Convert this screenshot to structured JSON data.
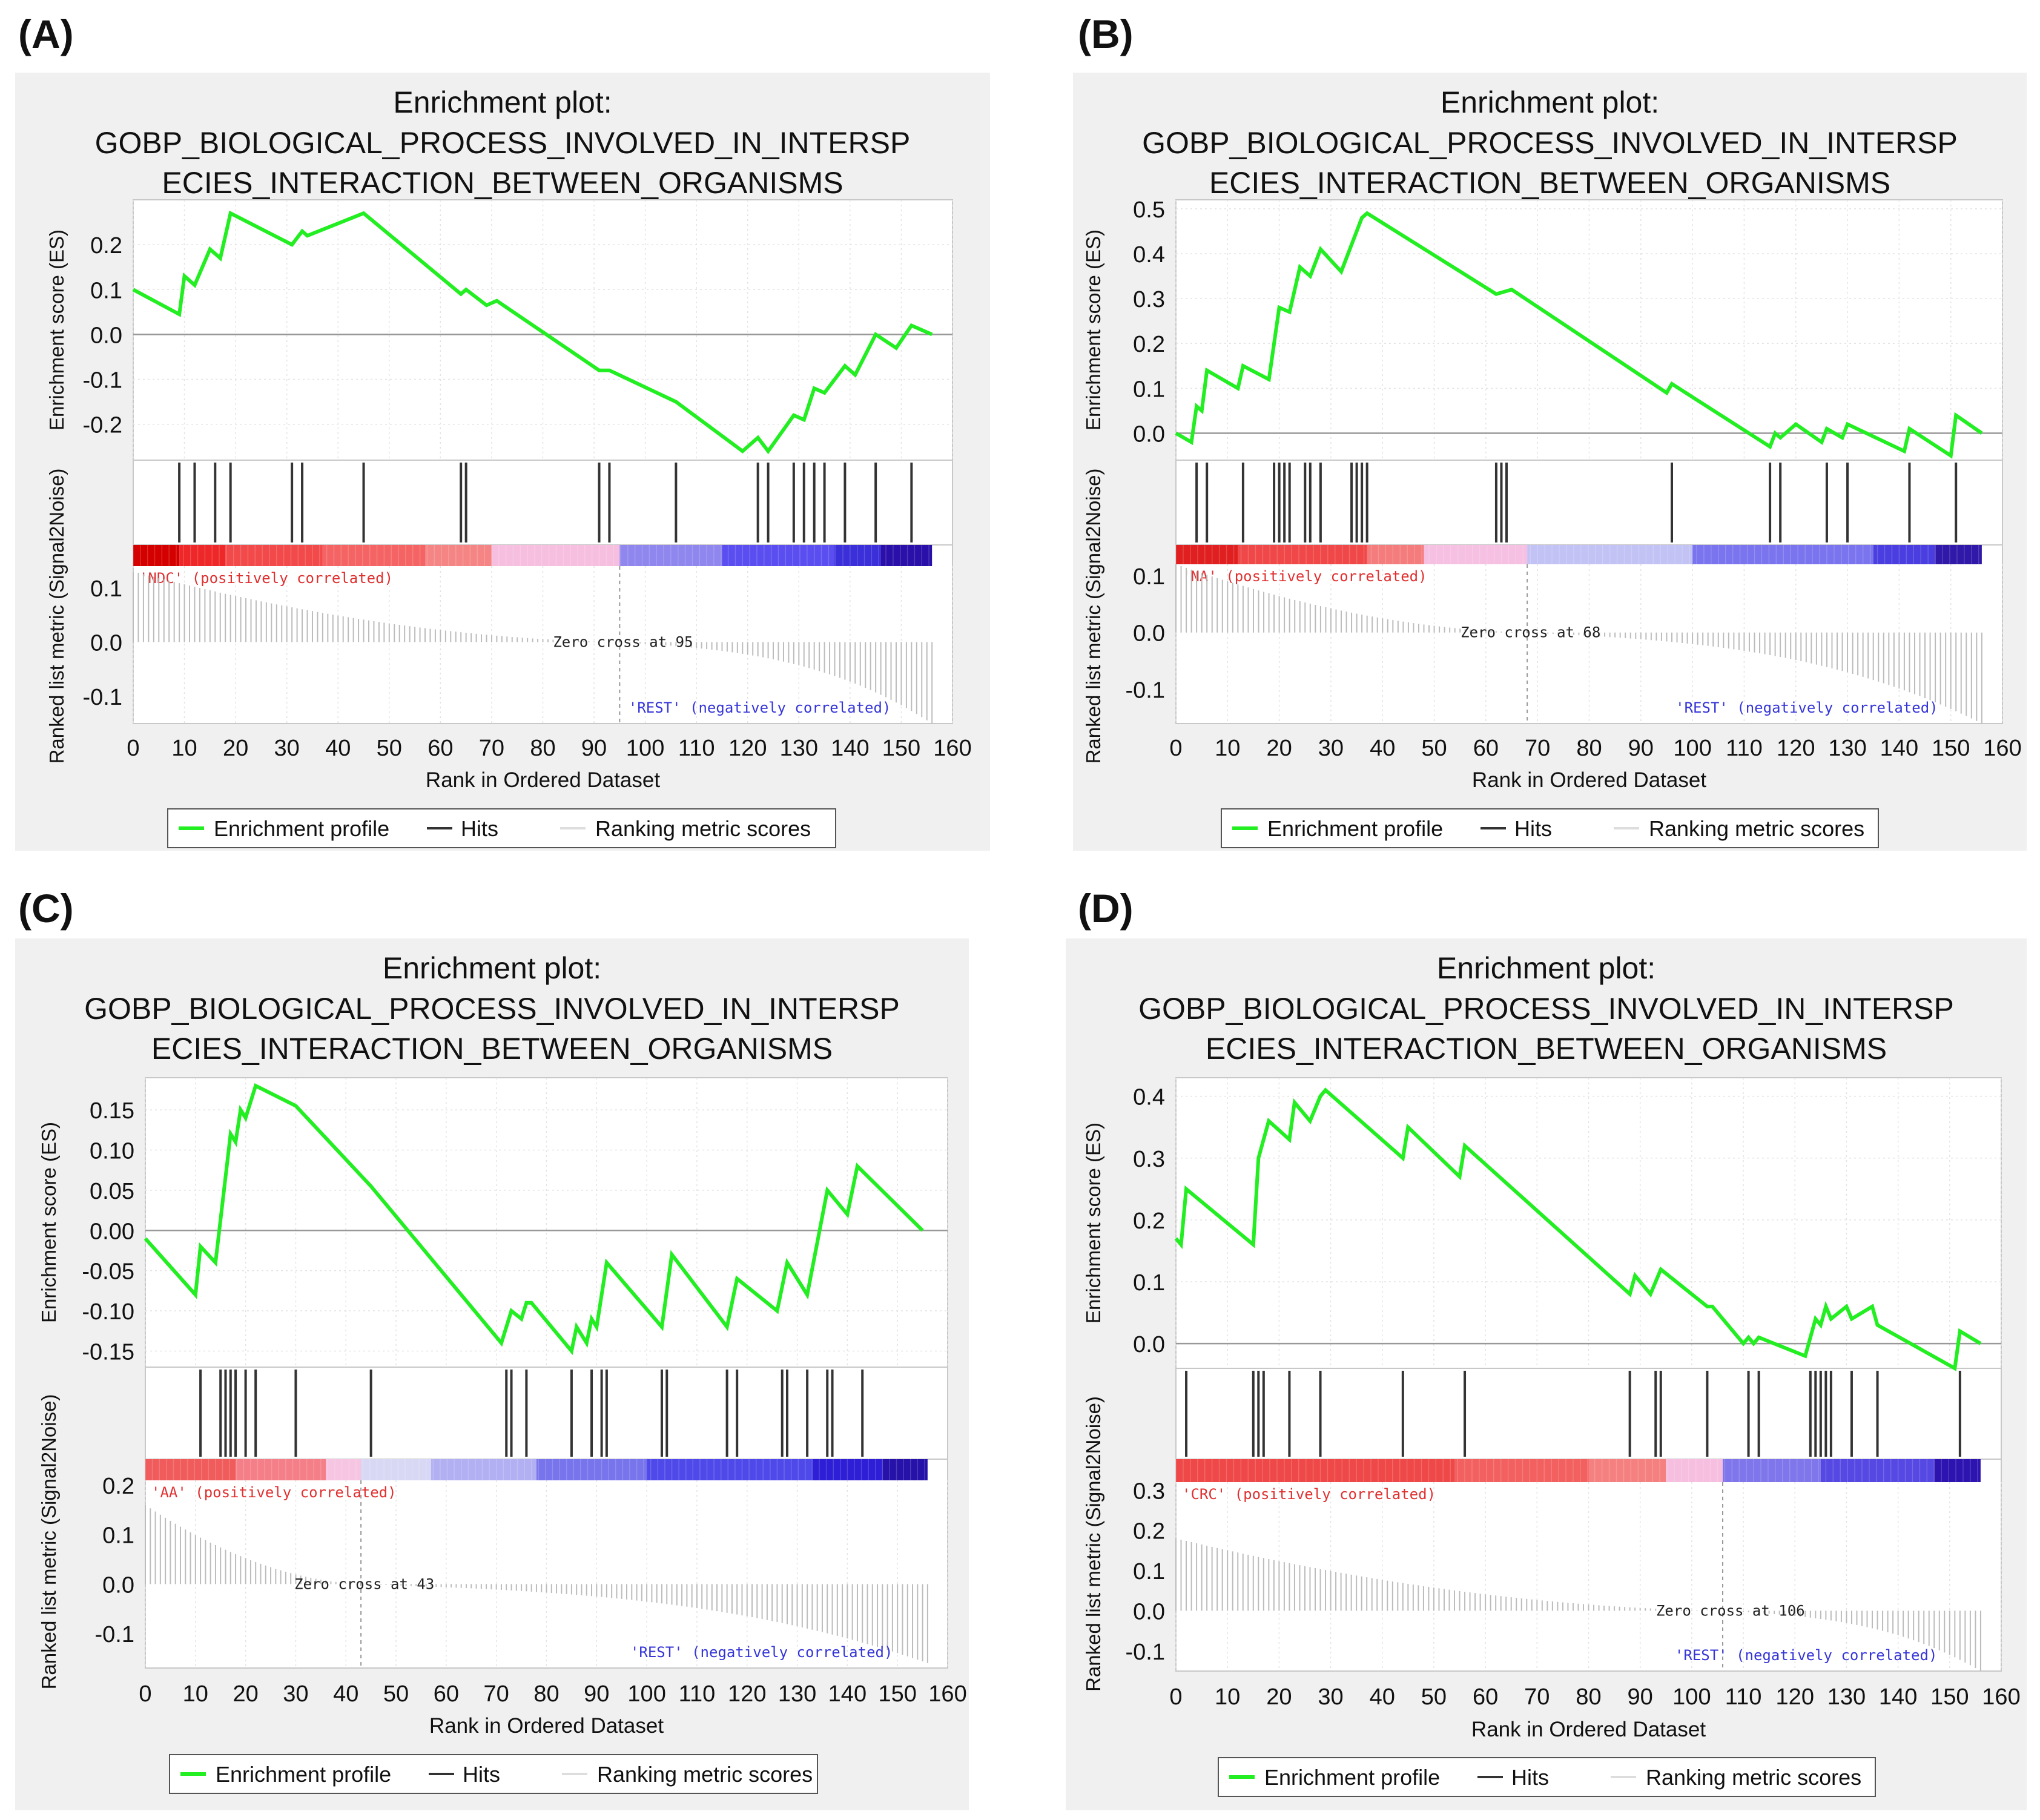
{
  "colors": {
    "profile": "#22ee22",
    "hits": "#333333",
    "ranking": "#bcbcbc",
    "pos_label": "#e03030",
    "neg_label": "#3535d8",
    "panel_bg": "#f0f0f0"
  },
  "legend": {
    "profile": "Enrichment profile",
    "hits": "Hits",
    "ranking": "Ranking metric scores"
  },
  "axis_labels": {
    "es": "Enrichment score (ES)",
    "metric": "Ranked list metric (Signal2Noise)",
    "x": "Rank in Ordered Dataset"
  },
  "chart_data": [
    {
      "panel": "(A)",
      "type": "line",
      "title": [
        "Enrichment plot:",
        "GOBP_BIOLOGICAL_PROCESS_INVOLVED_IN_INTERSP",
        "ECIES_INTERACTION_BETWEEN_ORGANISMS"
      ],
      "xlim": [
        0,
        160
      ],
      "xticks": [
        0,
        10,
        20,
        30,
        40,
        50,
        60,
        70,
        80,
        90,
        100,
        110,
        120,
        130,
        140,
        150,
        160
      ],
      "es_ylim": [
        -0.28,
        0.3
      ],
      "es_ticks": [
        -0.2,
        -0.1,
        0.0,
        0.1,
        0.2
      ],
      "es_tick_labels": [
        "-0.2",
        "-0.1",
        "0.0",
        "0.1",
        "0.2"
      ],
      "es_x": [
        0,
        9,
        10,
        12,
        15,
        17,
        19,
        31,
        33,
        34,
        45,
        64,
        65,
        69,
        71,
        91,
        93,
        106,
        119,
        122,
        124,
        129,
        131,
        133,
        135,
        139,
        141,
        145,
        149,
        152,
        156
      ],
      "es_y": [
        0.1,
        0.045,
        0.13,
        0.11,
        0.19,
        0.17,
        0.27,
        0.2,
        0.23,
        0.22,
        0.27,
        0.09,
        0.1,
        0.065,
        0.075,
        -0.08,
        -0.08,
        -0.15,
        -0.26,
        -0.23,
        -0.26,
        -0.18,
        -0.19,
        -0.12,
        -0.13,
        -0.07,
        -0.09,
        -0.0,
        -0.03,
        0.02,
        0.0
      ],
      "hits": [
        9,
        12,
        16,
        19,
        31,
        33,
        45,
        64,
        65,
        91,
        93,
        106,
        122,
        124,
        129,
        131,
        133,
        135,
        139,
        145,
        152
      ],
      "metric_ylim": [
        -0.15,
        0.14
      ],
      "metric_ticks": [
        -0.1,
        0.0,
        0.1
      ],
      "metric_tick_labels": [
        "-0.1",
        "0.0",
        "0.1"
      ],
      "metric_start": 0.13,
      "metric_end": -0.15,
      "metric_total": 156,
      "zero_cross": 95,
      "zero_cross_label": "Zero cross at 95",
      "pos_label": "'NDC' (positively correlated)",
      "neg_label": "'REST' (negatively correlated)",
      "heat_segments": [
        {
          "from": 0,
          "to": 9,
          "color": "#d40000"
        },
        {
          "from": 9,
          "to": 18,
          "color": "#ee2828"
        },
        {
          "from": 18,
          "to": 37,
          "color": "#f24a4a"
        },
        {
          "from": 37,
          "to": 57,
          "color": "#f56464"
        },
        {
          "from": 57,
          "to": 70,
          "color": "#f58585"
        },
        {
          "from": 70,
          "to": 95,
          "color": "#f6bfe0"
        },
        {
          "from": 95,
          "to": 115,
          "color": "#8f86ee"
        },
        {
          "from": 115,
          "to": 137,
          "color": "#5b4ef0"
        },
        {
          "from": 137,
          "to": 146,
          "color": "#3a2fd8"
        },
        {
          "from": 146,
          "to": 156,
          "color": "#2a10a8"
        }
      ]
    },
    {
      "panel": "(B)",
      "type": "line",
      "title": [
        "Enrichment plot:",
        "GOBP_BIOLOGICAL_PROCESS_INVOLVED_IN_INTERSP",
        "ECIES_INTERACTION_BETWEEN_ORGANISMS"
      ],
      "xlim": [
        0,
        160
      ],
      "xticks": [
        0,
        10,
        20,
        30,
        40,
        50,
        60,
        70,
        80,
        90,
        100,
        110,
        120,
        130,
        140,
        150,
        160
      ],
      "es_ylim": [
        -0.06,
        0.52
      ],
      "es_ticks": [
        0.0,
        0.1,
        0.2,
        0.3,
        0.4,
        0.5
      ],
      "es_tick_labels": [
        "0.0",
        "0.1",
        "0.2",
        "0.3",
        "0.4",
        "0.5"
      ],
      "es_x": [
        0,
        3,
        4,
        5,
        6,
        12,
        13,
        18,
        20,
        22,
        24,
        26,
        28,
        32,
        36,
        37,
        62,
        65,
        95,
        96,
        115,
        116,
        117,
        120,
        125,
        126,
        129,
        130,
        141,
        142,
        150,
        151,
        156
      ],
      "es_y": [
        0.0,
        -0.02,
        0.06,
        0.05,
        0.14,
        0.1,
        0.15,
        0.12,
        0.28,
        0.27,
        0.37,
        0.35,
        0.41,
        0.36,
        0.48,
        0.49,
        0.31,
        0.32,
        0.09,
        0.11,
        -0.03,
        0.0,
        -0.01,
        0.02,
        -0.02,
        0.01,
        -0.01,
        0.02,
        -0.04,
        0.01,
        -0.05,
        0.04,
        0.0
      ],
      "hits": [
        4,
        6,
        13,
        19,
        20,
        21,
        22,
        25,
        26,
        28,
        34,
        35,
        36,
        37,
        62,
        63,
        64,
        96,
        115,
        117,
        126,
        130,
        142,
        151
      ],
      "metric_ylim": [
        -0.16,
        0.12
      ],
      "metric_ticks": [
        -0.1,
        0.0,
        0.1
      ],
      "metric_tick_labels": [
        "-0.1",
        "0.0",
        "0.1"
      ],
      "metric_start": 0.12,
      "metric_end": -0.16,
      "metric_total": 156,
      "zero_cross": 68,
      "zero_cross_label": "Zero cross at 68",
      "pos_label": "'NA' (positively correlated)",
      "neg_label": "'REST' (negatively correlated)",
      "heat_segments": [
        {
          "from": 0,
          "to": 12,
          "color": "#e02020"
        },
        {
          "from": 12,
          "to": 37,
          "color": "#f04848"
        },
        {
          "from": 37,
          "to": 48,
          "color": "#f47c7c"
        },
        {
          "from": 48,
          "to": 68,
          "color": "#f5c0e2"
        },
        {
          "from": 68,
          "to": 100,
          "color": "#c2c2f5"
        },
        {
          "from": 100,
          "to": 135,
          "color": "#7a74ee"
        },
        {
          "from": 135,
          "to": 147,
          "color": "#4a3ee0"
        },
        {
          "from": 147,
          "to": 156,
          "color": "#3018a8"
        }
      ]
    },
    {
      "panel": "(C)",
      "type": "line",
      "title": [
        "Enrichment plot:",
        "GOBP_BIOLOGICAL_PROCESS_INVOLVED_IN_INTERSP",
        "ECIES_INTERACTION_BETWEEN_ORGANISMS"
      ],
      "xlim": [
        0,
        160
      ],
      "xticks": [
        0,
        10,
        20,
        30,
        40,
        50,
        60,
        70,
        80,
        90,
        100,
        110,
        120,
        130,
        140,
        150,
        160
      ],
      "es_ylim": [
        -0.17,
        0.19
      ],
      "es_ticks": [
        -0.15,
        -0.1,
        -0.05,
        0.0,
        0.05,
        0.1,
        0.15
      ],
      "es_tick_labels": [
        "-0.15",
        "-0.10",
        "-0.05",
        "0.00",
        "0.05",
        "0.10",
        "0.15"
      ],
      "es_x": [
        0,
        10,
        11,
        14,
        17,
        18,
        19,
        20,
        22,
        30,
        45,
        71,
        73,
        75,
        76,
        77,
        85,
        86,
        88,
        89,
        90,
        92,
        103,
        105,
        116,
        118,
        126,
        128,
        132,
        136,
        140,
        142,
        155
      ],
      "es_y": [
        -0.01,
        -0.08,
        -0.02,
        -0.04,
        0.12,
        0.11,
        0.15,
        0.14,
        0.18,
        0.155,
        0.055,
        -0.14,
        -0.1,
        -0.11,
        -0.09,
        -0.09,
        -0.15,
        -0.12,
        -0.14,
        -0.11,
        -0.12,
        -0.04,
        -0.12,
        -0.03,
        -0.12,
        -0.06,
        -0.1,
        -0.04,
        -0.08,
        0.05,
        0.02,
        0.08,
        0.0
      ],
      "hits": [
        11,
        15,
        16,
        17,
        18,
        20,
        22,
        30,
        45,
        72,
        73,
        76,
        85,
        89,
        91,
        92,
        103,
        104,
        116,
        118,
        127,
        128,
        132,
        136,
        137,
        143
      ],
      "metric_ylim": [
        -0.17,
        0.21
      ],
      "metric_ticks": [
        -0.1,
        0.0,
        0.1,
        0.2
      ],
      "metric_tick_labels": [
        "-0.1",
        "0.0",
        "0.1",
        "0.2"
      ],
      "metric_start": 0.16,
      "metric_end": -0.16,
      "metric_total": 156,
      "zero_cross": 43,
      "zero_cross_label": "Zero cross at 43",
      "pos_label": "'AA' (positively correlated)",
      "neg_label": "'REST' (negatively correlated)",
      "heat_segments": [
        {
          "from": 0,
          "to": 18,
          "color": "#f05c5c"
        },
        {
          "from": 18,
          "to": 36,
          "color": "#f47f88"
        },
        {
          "from": 36,
          "to": 43,
          "color": "#f5c5e2"
        },
        {
          "from": 43,
          "to": 57,
          "color": "#d8d8f5"
        },
        {
          "from": 57,
          "to": 78,
          "color": "#b2b0f2"
        },
        {
          "from": 78,
          "to": 100,
          "color": "#7874ec"
        },
        {
          "from": 100,
          "to": 133,
          "color": "#4f49ea"
        },
        {
          "from": 133,
          "to": 147,
          "color": "#2e1ed5"
        },
        {
          "from": 147,
          "to": 156,
          "color": "#2612a8"
        }
      ]
    },
    {
      "panel": "(D)",
      "type": "line",
      "title": [
        "Enrichment plot:",
        "GOBP_BIOLOGICAL_PROCESS_INVOLVED_IN_INTERSP",
        "ECIES_INTERACTION_BETWEEN_ORGANISMS"
      ],
      "xlim": [
        0,
        160
      ],
      "xticks": [
        0,
        10,
        20,
        30,
        40,
        50,
        60,
        70,
        80,
        90,
        100,
        110,
        120,
        130,
        140,
        150,
        160
      ],
      "es_ylim": [
        -0.04,
        0.43
      ],
      "es_ticks": [
        0.0,
        0.1,
        0.2,
        0.3,
        0.4
      ],
      "es_tick_labels": [
        "0.0",
        "0.1",
        "0.2",
        "0.3",
        "0.4"
      ],
      "es_x": [
        0,
        1,
        2,
        15,
        16,
        17,
        18,
        22,
        23,
        26,
        28,
        29,
        44,
        45,
        55,
        56,
        88,
        89,
        92,
        94,
        103,
        104,
        110,
        111,
        112,
        113,
        122,
        124,
        125,
        126,
        127,
        130,
        131,
        135,
        136,
        151,
        152,
        156
      ],
      "es_y": [
        0.17,
        0.16,
        0.25,
        0.16,
        0.3,
        0.33,
        0.36,
        0.33,
        0.39,
        0.36,
        0.4,
        0.41,
        0.3,
        0.35,
        0.27,
        0.32,
        0.08,
        0.11,
        0.08,
        0.12,
        0.06,
        0.06,
        0.0,
        0.01,
        0.0,
        0.01,
        -0.02,
        0.04,
        0.03,
        0.06,
        0.04,
        0.06,
        0.04,
        0.06,
        0.03,
        -0.04,
        0.02,
        0.0
      ],
      "hits": [
        2,
        15,
        16,
        17,
        22,
        28,
        44,
        56,
        88,
        93,
        94,
        103,
        111,
        113,
        123,
        124,
        125,
        126,
        127,
        131,
        136,
        152
      ],
      "metric_ylim": [
        -0.15,
        0.32
      ],
      "metric_ticks": [
        -0.1,
        0.0,
        0.1,
        0.2,
        0.3
      ],
      "metric_tick_labels": [
        "-0.1",
        "0.0",
        "0.1",
        "0.2",
        "0.3"
      ],
      "metric_start": 0.18,
      "metric_end": -0.15,
      "metric_total": 156,
      "zero_cross": 106,
      "zero_cross_label": "Zero cross at 106",
      "pos_label": "'CRC' (positively correlated)",
      "neg_label": "'REST' (negatively correlated)",
      "heat_segments": [
        {
          "from": 0,
          "to": 54,
          "color": "#ef4848"
        },
        {
          "from": 54,
          "to": 80,
          "color": "#f26060"
        },
        {
          "from": 80,
          "to": 95,
          "color": "#f58080"
        },
        {
          "from": 95,
          "to": 106,
          "color": "#f6bfe0"
        },
        {
          "from": 106,
          "to": 125,
          "color": "#7e76ea"
        },
        {
          "from": 125,
          "to": 147,
          "color": "#5648e2"
        },
        {
          "from": 147,
          "to": 156,
          "color": "#2d14b0"
        }
      ]
    }
  ]
}
